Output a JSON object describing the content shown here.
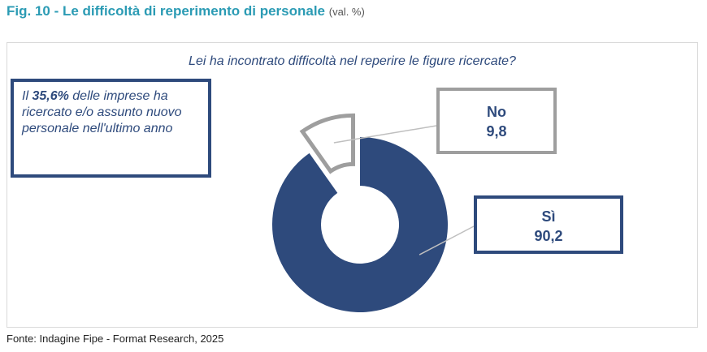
{
  "figure": {
    "title": "Fig. 10 - Le difficoltà di reperimento di personale",
    "unit": "(val. %)"
  },
  "question": "Lei ha incontrato difficoltà nel reperire le figure ricercate?",
  "note": {
    "prefix": "Il ",
    "highlight": "35,6%",
    "suffix": " delle imprese ha ricercato e/o assunto nuovo personale nell'ultimo anno"
  },
  "source": "Fonte: Indagine Fipe - Format Research, 2025",
  "colors": {
    "title": "#2b9bb4",
    "si": "#2e4a7c",
    "no": "#9e9e9e"
  },
  "chart_data": {
    "type": "pie",
    "variant": "donut",
    "title": "Lei ha incontrato difficoltà nel reperire le figure ricercate?",
    "categories": [
      "No",
      "Sì"
    ],
    "values": [
      9.8,
      90.2
    ],
    "value_labels": [
      "9,8",
      "90,2"
    ],
    "colors": [
      "#9e9e9e",
      "#2e4a7c"
    ],
    "exploded": [
      "No"
    ]
  }
}
